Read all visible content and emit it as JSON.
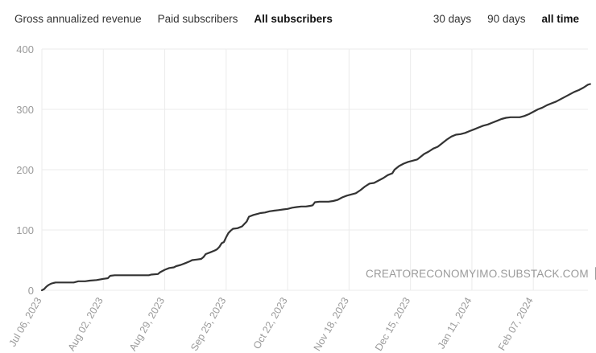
{
  "tabs": {
    "metric": [
      {
        "label": "Gross annualized revenue",
        "active": false
      },
      {
        "label": "Paid subscribers",
        "active": false
      },
      {
        "label": "All subscribers",
        "active": true
      }
    ],
    "range": [
      {
        "label": "30 days",
        "active": false
      },
      {
        "label": "90 days",
        "active": false
      },
      {
        "label": "all time",
        "active": true
      }
    ]
  },
  "watermark": {
    "text": "CREATORECONOMYIMO.SUBSTACK.COM",
    "icon": "external-link-icon"
  },
  "colors": {
    "line": "#333333",
    "grid": "#ebebeb",
    "axis_text": "#9a9a9a"
  },
  "chart_data": {
    "type": "line",
    "title": "All subscribers",
    "xlabel": "",
    "ylabel": "",
    "ylim": [
      0,
      400
    ],
    "yticks": [
      0,
      100,
      200,
      300,
      400
    ],
    "grid": true,
    "xlim_days": [
      0,
      240
    ],
    "x_ticks": [
      {
        "label": "Jul 06, 2023",
        "day": 0
      },
      {
        "label": "Aug 02, 2023",
        "day": 27
      },
      {
        "label": "Aug 29, 2023",
        "day": 54
      },
      {
        "label": "Sep 25, 2023",
        "day": 81
      },
      {
        "label": "Oct 22, 2023",
        "day": 108
      },
      {
        "label": "Nov 18, 2023",
        "day": 135
      },
      {
        "label": "Dec 15, 2023",
        "day": 162
      },
      {
        "label": "Jan 11, 2024",
        "day": 189
      },
      {
        "label": "Feb 07, 2024",
        "day": 216
      }
    ],
    "series": [
      {
        "name": "All subscribers",
        "points": [
          [
            0,
            0
          ],
          [
            1,
            2
          ],
          [
            2,
            6
          ],
          [
            3,
            9
          ],
          [
            4,
            11
          ],
          [
            5,
            12
          ],
          [
            6,
            13
          ],
          [
            8,
            13
          ],
          [
            11,
            13
          ],
          [
            14,
            13
          ],
          [
            16,
            15
          ],
          [
            19,
            15
          ],
          [
            21,
            16
          ],
          [
            24,
            17
          ],
          [
            27,
            19
          ],
          [
            29,
            20
          ],
          [
            30,
            24
          ],
          [
            32,
            25
          ],
          [
            36,
            25
          ],
          [
            40,
            25
          ],
          [
            45,
            25
          ],
          [
            47,
            25
          ],
          [
            48,
            26
          ],
          [
            51,
            27
          ],
          [
            52,
            30
          ],
          [
            54,
            34
          ],
          [
            56,
            37
          ],
          [
            58,
            38
          ],
          [
            59,
            40
          ],
          [
            61,
            42
          ],
          [
            63,
            45
          ],
          [
            65,
            48
          ],
          [
            66,
            50
          ],
          [
            68,
            51
          ],
          [
            70,
            52
          ],
          [
            71,
            55
          ],
          [
            72,
            60
          ],
          [
            74,
            63
          ],
          [
            76,
            66
          ],
          [
            77,
            68
          ],
          [
            78,
            72
          ],
          [
            79,
            78
          ],
          [
            80,
            80
          ],
          [
            81,
            88
          ],
          [
            82,
            95
          ],
          [
            83,
            99
          ],
          [
            84,
            102
          ],
          [
            86,
            103
          ],
          [
            88,
            106
          ],
          [
            89,
            110
          ],
          [
            90,
            114
          ],
          [
            91,
            122
          ],
          [
            93,
            125
          ],
          [
            95,
            127
          ],
          [
            96,
            128
          ],
          [
            98,
            129
          ],
          [
            100,
            131
          ],
          [
            102,
            132
          ],
          [
            104,
            133
          ],
          [
            106,
            134
          ],
          [
            108,
            135
          ],
          [
            110,
            137
          ],
          [
            112,
            138
          ],
          [
            114,
            139
          ],
          [
            116,
            139
          ],
          [
            118,
            140
          ],
          [
            119,
            141
          ],
          [
            120,
            146
          ],
          [
            122,
            147
          ],
          [
            124,
            147
          ],
          [
            126,
            147
          ],
          [
            128,
            148
          ],
          [
            130,
            150
          ],
          [
            132,
            154
          ],
          [
            134,
            157
          ],
          [
            136,
            159
          ],
          [
            138,
            161
          ],
          [
            140,
            166
          ],
          [
            142,
            172
          ],
          [
            144,
            177
          ],
          [
            146,
            178
          ],
          [
            148,
            182
          ],
          [
            150,
            186
          ],
          [
            152,
            191
          ],
          [
            154,
            194
          ],
          [
            155,
            200
          ],
          [
            157,
            206
          ],
          [
            159,
            210
          ],
          [
            161,
            213
          ],
          [
            163,
            215
          ],
          [
            165,
            217
          ],
          [
            166,
            220
          ],
          [
            168,
            226
          ],
          [
            170,
            230
          ],
          [
            172,
            235
          ],
          [
            174,
            238
          ],
          [
            176,
            244
          ],
          [
            178,
            250
          ],
          [
            180,
            255
          ],
          [
            182,
            258
          ],
          [
            184,
            259
          ],
          [
            186,
            261
          ],
          [
            188,
            264
          ],
          [
            190,
            267
          ],
          [
            192,
            270
          ],
          [
            194,
            273
          ],
          [
            196,
            275
          ],
          [
            198,
            278
          ],
          [
            200,
            281
          ],
          [
            202,
            284
          ],
          [
            204,
            286
          ],
          [
            206,
            287
          ],
          [
            208,
            287
          ],
          [
            210,
            287
          ],
          [
            212,
            289
          ],
          [
            214,
            292
          ],
          [
            216,
            296
          ],
          [
            218,
            300
          ],
          [
            220,
            303
          ],
          [
            222,
            307
          ],
          [
            224,
            310
          ],
          [
            226,
            313
          ],
          [
            228,
            317
          ],
          [
            230,
            321
          ],
          [
            232,
            325
          ],
          [
            234,
            329
          ],
          [
            236,
            332
          ],
          [
            238,
            336
          ],
          [
            240,
            341
          ],
          [
            241,
            342
          ]
        ]
      }
    ]
  }
}
